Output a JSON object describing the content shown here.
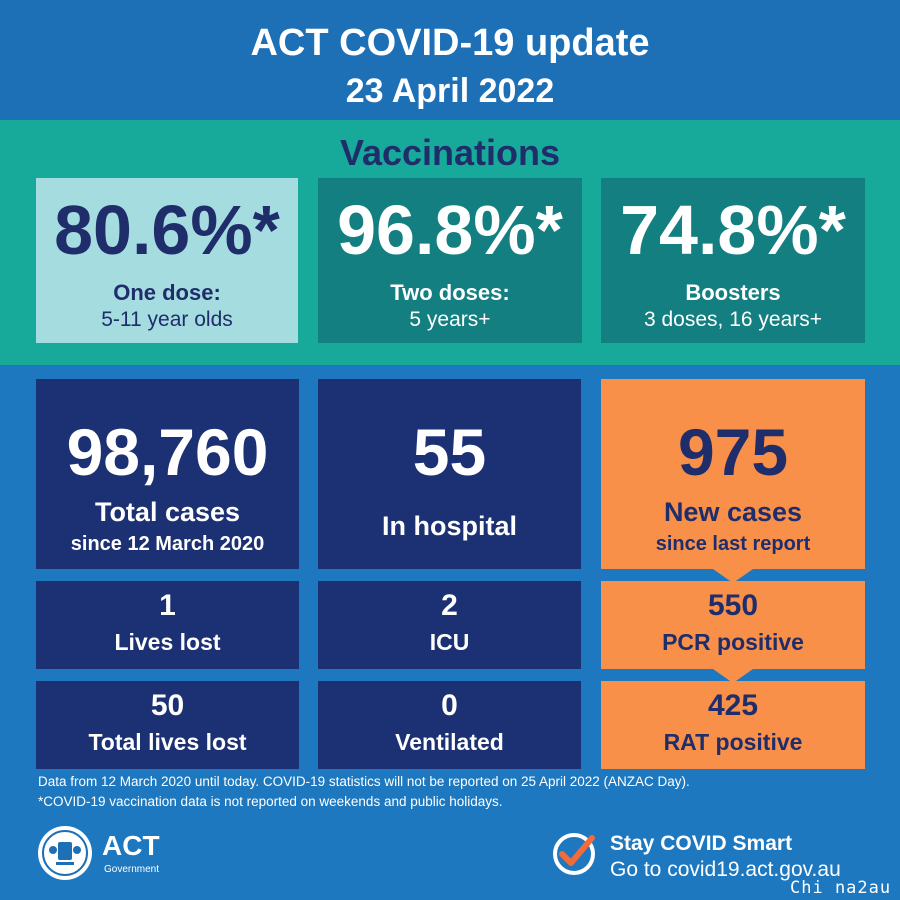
{
  "header": {
    "title": "ACT COVID-19 update",
    "date": "23 April 2022"
  },
  "vaccinations": {
    "heading": "Vaccinations",
    "items": [
      {
        "value": "80.6%*",
        "label1": "One dose:",
        "label2": "5-11 year olds"
      },
      {
        "value": "96.8%*",
        "label1": "Two doses:",
        "label2": "5 years+"
      },
      {
        "value": "74.8%*",
        "label1": "Boosters",
        "label2": "3 doses, 16 years+"
      }
    ]
  },
  "stats": {
    "total_cases": {
      "value": "98,760",
      "label1": "Total cases",
      "label2": "since 12 March 2020"
    },
    "in_hospital": {
      "value": "55",
      "label": "In hospital"
    },
    "new_cases": {
      "value": "975",
      "label1": "New cases",
      "label2": "since last report"
    },
    "lives_lost": {
      "value": "1",
      "label": "Lives lost"
    },
    "icu": {
      "value": "2",
      "label": "ICU"
    },
    "pcr_positive": {
      "value": "550",
      "label": "PCR positive"
    },
    "total_lives_lost": {
      "value": "50",
      "label": "Total lives lost"
    },
    "ventilated": {
      "value": "0",
      "label": "Ventilated"
    },
    "rat_positive": {
      "value": "425",
      "label": "RAT positive"
    }
  },
  "footnote": {
    "line1": "Data from 12 March 2020 until today. COVID-19 statistics will not be reported on 25 April 2022 (ANZAC Day).",
    "line2": "*COVID-19 vaccination data is not reported on weekends and public holidays."
  },
  "logo": {
    "name": "ACT",
    "sub": "Government"
  },
  "promo": {
    "line1": "Stay COVID Smart",
    "line2": "Go to covid19.act.gov.au"
  },
  "watermark": "Chi na2au",
  "colors": {
    "blue": "#1d6fb6",
    "teal": "#17aa9a",
    "navy": "#1c3174",
    "orange": "#f8904a",
    "light_teal": "#a5dce0"
  }
}
